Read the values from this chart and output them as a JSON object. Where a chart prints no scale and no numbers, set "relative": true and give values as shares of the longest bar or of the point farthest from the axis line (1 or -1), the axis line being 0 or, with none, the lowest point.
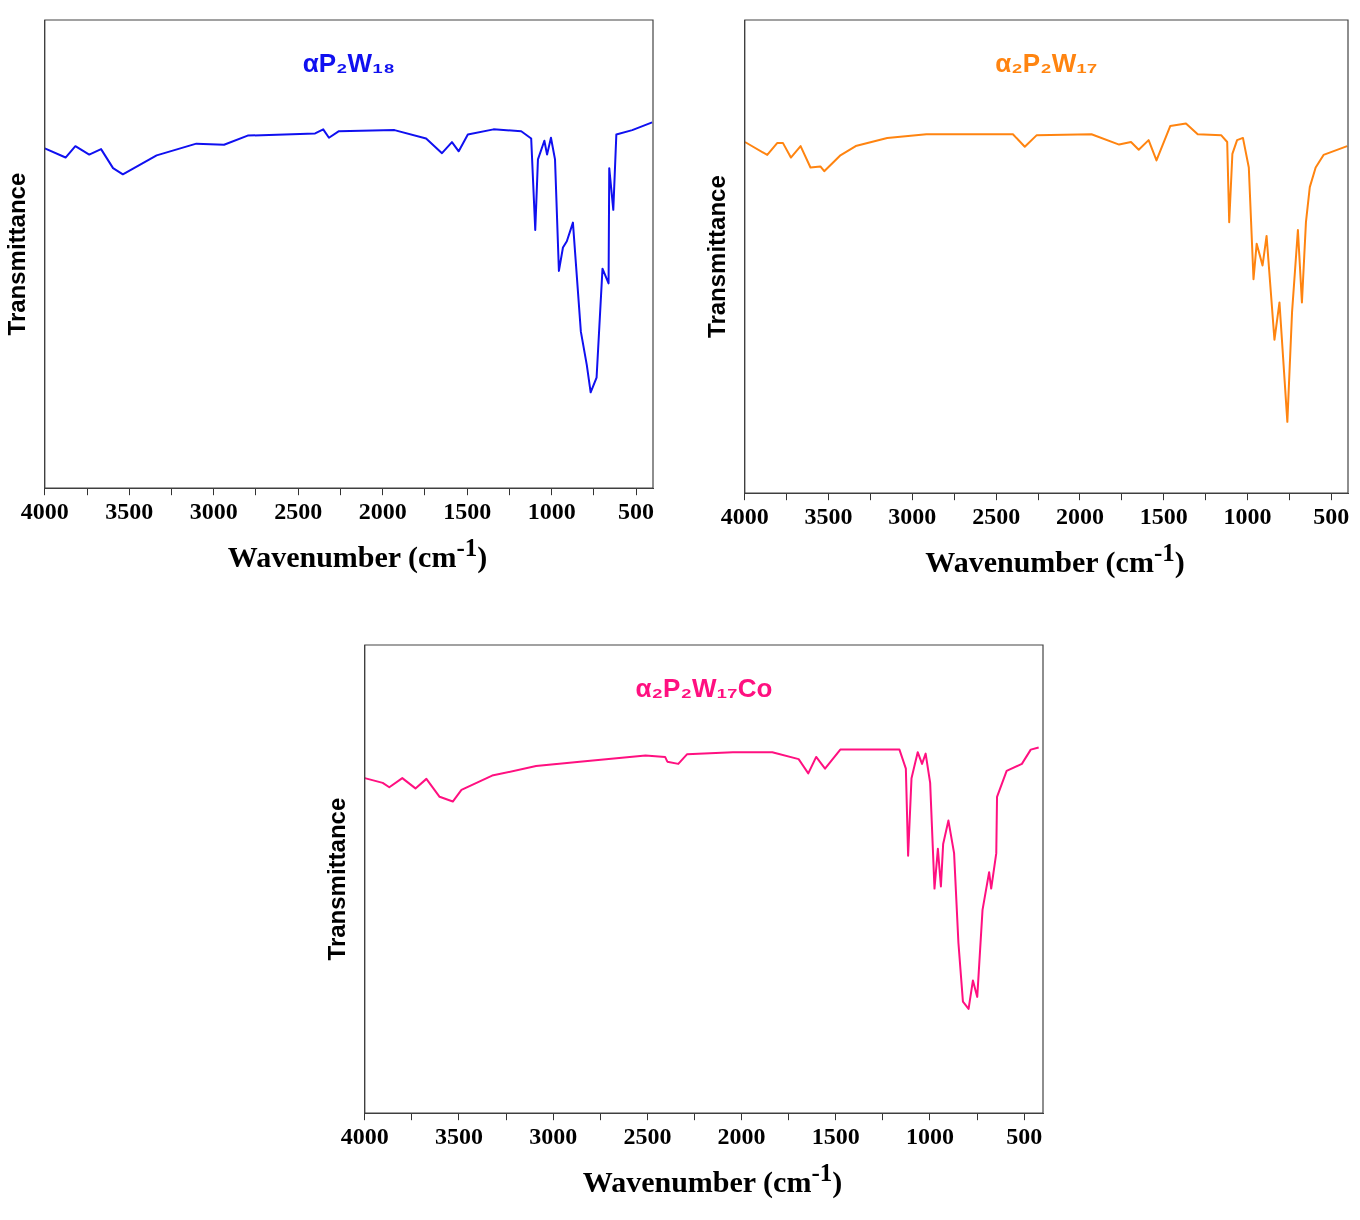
{
  "chart_data": [
    {
      "type": "line",
      "title": "αP₂W₁₈",
      "xlabel": "Wavenumber (cm$^{-1}$)",
      "ylabel": "Transmittance",
      "relative": true,
      "color": "#1010f0",
      "xlim": [
        4000,
        400
      ],
      "xticks": [
        4000,
        {
          "value": 3750,
          "label": null
        },
        3500,
        {
          "value": 3250,
          "label": null
        },
        3000,
        {
          "value": 2750,
          "label": null
        },
        2500,
        {
          "value": 2250,
          "label": null
        },
        2000,
        {
          "value": 1750,
          "label": null
        },
        1500,
        {
          "value": 1250,
          "label": null
        },
        1000,
        {
          "value": 750,
          "label": null
        },
        500
      ],
      "x": [
        4000,
        3877,
        3819,
        3737,
        3667,
        3596,
        3538,
        3338,
        3103,
        2939,
        2799,
        2400,
        2352,
        2318,
        2259,
        1930,
        1743,
        1649,
        1590,
        1550,
        1496,
        1344,
        1180,
        1121,
        1097,
        1081,
        1043,
        1027,
        1004,
        980,
        957,
        933,
        910,
        874,
        827,
        792,
        769,
        734,
        699,
        663,
        659,
        635,
        617,
        523,
        405
      ],
      "values": [
        0.929,
        0.904,
        0.935,
        0.912,
        0.927,
        0.875,
        0.858,
        0.91,
        0.942,
        0.939,
        0.964,
        0.97,
        0.981,
        0.958,
        0.976,
        0.979,
        0.956,
        0.916,
        0.946,
        0.921,
        0.967,
        0.981,
        0.976,
        0.956,
        0.706,
        0.899,
        0.95,
        0.912,
        0.958,
        0.899,
        0.594,
        0.658,
        0.675,
        0.726,
        0.428,
        0.337,
        0.262,
        0.302,
        0.6,
        0.56,
        0.875,
        0.761,
        0.967,
        0.979,
        1.0
      ]
    },
    {
      "type": "line",
      "title": "α₂P₂W₁₇",
      "xlabel": "Wavenumber (cm$^{-1}$)",
      "ylabel": "Transmittance",
      "relative": true,
      "color": "#ff8410",
      "xlim": [
        4000,
        400
      ],
      "xticks": [
        4000,
        {
          "value": 3750,
          "label": null
        },
        3500,
        {
          "value": 3250,
          "label": null
        },
        3000,
        {
          "value": 2750,
          "label": null
        },
        2500,
        {
          "value": 2250,
          "label": null
        },
        2000,
        {
          "value": 1750,
          "label": null
        },
        1500,
        {
          "value": 1250,
          "label": null
        },
        1000,
        {
          "value": 750,
          "label": null
        },
        500
      ],
      "x": [
        3999,
        3866,
        3807,
        3772,
        3725,
        3667,
        3608,
        3549,
        3526,
        3432,
        3338,
        3150,
        2916,
        2400,
        2329,
        2259,
        1931,
        1766,
        1695,
        1649,
        1590,
        1543,
        1461,
        1367,
        1297,
        1156,
        1121,
        1109,
        1090,
        1062,
        1027,
        992,
        964,
        945,
        910,
        886,
        839,
        809,
        762,
        734,
        699,
        675,
        651,
        628,
        593,
        546,
        405
      ],
      "values": [
        0.95,
        0.915,
        0.947,
        0.947,
        0.908,
        0.939,
        0.881,
        0.884,
        0.871,
        0.913,
        0.939,
        0.961,
        0.971,
        0.971,
        0.937,
        0.968,
        0.971,
        0.943,
        0.95,
        0.929,
        0.955,
        0.9,
        0.993,
        1.0,
        0.971,
        0.968,
        0.95,
        0.733,
        0.918,
        0.955,
        0.961,
        0.881,
        0.579,
        0.675,
        0.616,
        0.696,
        0.415,
        0.516,
        0.193,
        0.489,
        0.712,
        0.516,
        0.733,
        0.828,
        0.881,
        0.915,
        0.939
      ]
    },
    {
      "type": "line",
      "title": "α₂P₂W₁₇Co",
      "xlabel": "Wavenumber (cm$^{-1}$)",
      "ylabel": "Transmittance",
      "relative": true,
      "color": "#ff1080",
      "xlim": [
        4000,
        400
      ],
      "xticks": [
        4000,
        {
          "value": 3750,
          "label": null
        },
        3500,
        {
          "value": 3250,
          "label": null
        },
        3000,
        {
          "value": 2750,
          "label": null
        },
        2500,
        {
          "value": 2250,
          "label": null
        },
        2000,
        {
          "value": 1750,
          "label": null
        },
        1500,
        {
          "value": 1250,
          "label": null
        },
        1000,
        {
          "value": 750,
          "label": null
        },
        500
      ],
      "x": [
        4000,
        3905,
        3870,
        3801,
        3731,
        3673,
        3603,
        3533,
        3487,
        3324,
        3091,
        2859,
        2510,
        2406,
        2394,
        2336,
        2290,
        2046,
        1837,
        1697,
        1646,
        1604,
        1557,
        1476,
        1162,
        1128,
        1116,
        1098,
        1065,
        1042,
        1023,
        999,
        976,
        958,
        942,
        930,
        902,
        872,
        849,
        825,
        795,
        772,
        749,
        721,
        686,
        675,
        648,
        644,
        593,
        512,
        465,
        423
      ],
      "values": [
        0.916,
        0.903,
        0.891,
        0.916,
        0.888,
        0.914,
        0.865,
        0.852,
        0.884,
        0.923,
        0.949,
        0.961,
        0.978,
        0.974,
        0.961,
        0.955,
        0.981,
        0.987,
        0.987,
        0.968,
        0.929,
        0.974,
        0.942,
        0.994,
        0.994,
        0.942,
        0.704,
        0.916,
        0.987,
        0.955,
        0.983,
        0.903,
        0.614,
        0.723,
        0.62,
        0.736,
        0.8,
        0.711,
        0.466,
        0.305,
        0.285,
        0.363,
        0.318,
        0.556,
        0.659,
        0.614,
        0.711,
        0.865,
        0.936,
        0.955,
        0.994,
        1.0
      ]
    }
  ]
}
